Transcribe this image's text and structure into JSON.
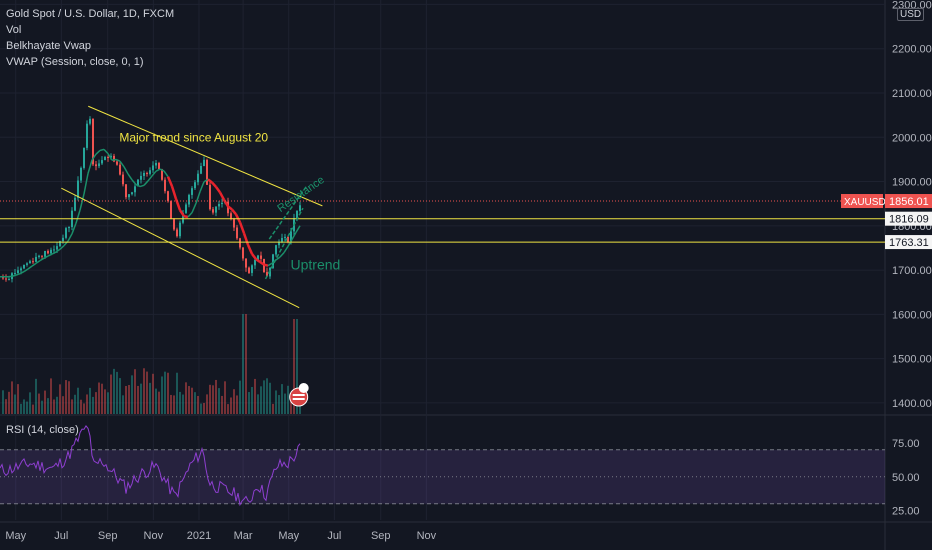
{
  "legend": {
    "title": "Gold Spot / U.S. Dollar, 1D, FXCM",
    "items": [
      "Vol",
      "Belkhayate Vwap",
      "VWAP (Session, close, 0, 1)"
    ]
  },
  "currency": "USD",
  "rsi_label": "RSI (14, close)",
  "colors": {
    "background": "#131722",
    "up": "#26a69a",
    "down": "#ef5350",
    "trendline": "#f0e442",
    "vwap_red": "#e8232c",
    "rsi": "#8e3fd0",
    "grid": "#1e2230"
  },
  "chart_data": [
    {
      "type": "candlestick",
      "symbol": "XAUUSD",
      "price_axis": {
        "ticks": [
          1400,
          1500,
          1600,
          1700,
          1800,
          1900,
          2000,
          2100,
          2200,
          2300
        ],
        "ylim": [
          1375,
          2310
        ]
      },
      "time_axis": {
        "ticks": [
          "May",
          "Jul",
          "Sep",
          "Nov",
          "2021",
          "Mar",
          "May",
          "Jul",
          "Sep",
          "Nov"
        ]
      },
      "close_path": [
        {
          "date": "2020-04-20",
          "price": 1685
        },
        {
          "date": "2020-05-10",
          "price": 1710
        },
        {
          "date": "2020-06-01",
          "price": 1735
        },
        {
          "date": "2020-06-20",
          "price": 1745
        },
        {
          "date": "2020-07-10",
          "price": 1800
        },
        {
          "date": "2020-07-28",
          "price": 1950
        },
        {
          "date": "2020-08-06",
          "price": 2065
        },
        {
          "date": "2020-08-12",
          "price": 1920
        },
        {
          "date": "2020-08-25",
          "price": 1960
        },
        {
          "date": "2020-09-10",
          "price": 1950
        },
        {
          "date": "2020-09-25",
          "price": 1865
        },
        {
          "date": "2020-10-15",
          "price": 1910
        },
        {
          "date": "2020-11-05",
          "price": 1950
        },
        {
          "date": "2020-11-15",
          "price": 1880
        },
        {
          "date": "2020-11-30",
          "price": 1775
        },
        {
          "date": "2020-12-20",
          "price": 1880
        },
        {
          "date": "2021-01-06",
          "price": 1955
        },
        {
          "date": "2021-01-15",
          "price": 1830
        },
        {
          "date": "2021-02-01",
          "price": 1860
        },
        {
          "date": "2021-02-15",
          "price": 1795
        },
        {
          "date": "2021-03-01",
          "price": 1720
        },
        {
          "date": "2021-03-08",
          "price": 1690
        },
        {
          "date": "2021-03-20",
          "price": 1740
        },
        {
          "date": "2021-03-31",
          "price": 1685
        },
        {
          "date": "2021-04-15",
          "price": 1770
        },
        {
          "date": "2021-04-30",
          "price": 1770
        },
        {
          "date": "2021-05-10",
          "price": 1835
        },
        {
          "date": "2021-05-17",
          "price": 1856
        }
      ],
      "horizontal_levels": [
        {
          "price": 1856.01,
          "label": "1856.01",
          "style": "dotted",
          "tag": "XAUUSD"
        },
        {
          "price": 1816.09,
          "label": "1816.09"
        },
        {
          "price": 1763.31,
          "label": "1763.31"
        }
      ],
      "trend_channel": {
        "upper": [
          {
            "date": "2020-08-06",
            "price": 2070
          },
          {
            "date": "2021-06-15",
            "price": 1845
          }
        ],
        "lower": [
          {
            "date": "2020-07-01",
            "price": 1885
          },
          {
            "date": "2021-05-15",
            "price": 1615
          }
        ]
      },
      "annotations": [
        {
          "text": "Major trend since August 20",
          "near": {
            "date": "2020-12-25",
            "price": 1990
          }
        },
        {
          "text": "Resistance",
          "near": {
            "date": "2021-04-20",
            "price": 1830
          }
        },
        {
          "text": "Uptrend",
          "near": {
            "date": "2021-04-20",
            "price": 1715
          }
        }
      ],
      "volume": {
        "max_spike_date": "2021-03-01",
        "notes": "histogram at bottom of price pane"
      }
    },
    {
      "type": "line",
      "name": "RSI",
      "ticks": [
        25,
        50,
        75
      ],
      "ylim": [
        18,
        95
      ],
      "bands": [
        30,
        70
      ],
      "values": [
        {
          "date": "2020-04-20",
          "rsi": 55
        },
        {
          "date": "2020-05-20",
          "rsi": 60
        },
        {
          "date": "2020-06-20",
          "rsi": 56
        },
        {
          "date": "2020-07-10",
          "rsi": 65
        },
        {
          "date": "2020-07-28",
          "rsi": 82
        },
        {
          "date": "2020-08-06",
          "rsi": 88
        },
        {
          "date": "2020-08-12",
          "rsi": 58
        },
        {
          "date": "2020-08-25",
          "rsi": 62
        },
        {
          "date": "2020-09-25",
          "rsi": 42
        },
        {
          "date": "2020-10-15",
          "rsi": 52
        },
        {
          "date": "2020-11-05",
          "rsi": 58
        },
        {
          "date": "2020-11-30",
          "rsi": 35
        },
        {
          "date": "2020-12-20",
          "rsi": 58
        },
        {
          "date": "2021-01-06",
          "rsi": 70
        },
        {
          "date": "2021-01-15",
          "rsi": 45
        },
        {
          "date": "2021-02-15",
          "rsi": 38
        },
        {
          "date": "2021-03-08",
          "rsi": 30
        },
        {
          "date": "2021-03-20",
          "rsi": 45
        },
        {
          "date": "2021-03-31",
          "rsi": 36
        },
        {
          "date": "2021-04-15",
          "rsi": 58
        },
        {
          "date": "2021-04-30",
          "rsi": 60
        },
        {
          "date": "2021-05-10",
          "rsi": 66
        },
        {
          "date": "2021-05-17",
          "rsi": 72
        }
      ]
    }
  ]
}
